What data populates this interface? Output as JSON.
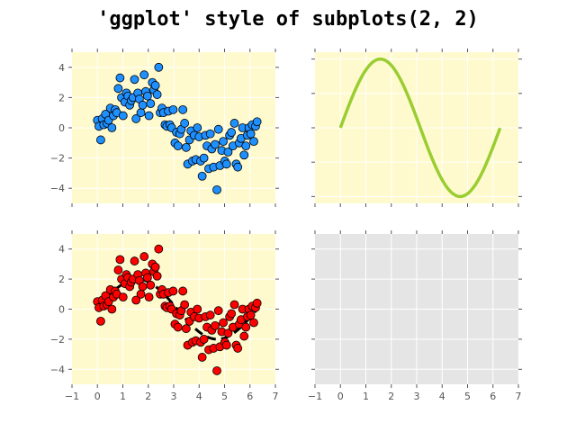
{
  "figure": {
    "suptitle": "'ggplot' style of subplots(2, 2)"
  },
  "chart_data": [
    {
      "type": "scatter",
      "panel": "top-left",
      "background": "#fffacd",
      "marker_color": "#1e90ff",
      "marker_edge": "#000000",
      "xlim": [
        -1,
        7
      ],
      "ylim": [
        -5,
        5
      ],
      "xticks": [
        -1,
        0,
        1,
        2,
        3,
        4,
        5,
        6,
        7
      ],
      "yticks": [
        -4,
        -2,
        0,
        2,
        4
      ],
      "show_xtick_labels": false,
      "show_ytick_labels": true,
      "grid": true,
      "x": [
        0.0,
        0.06,
        0.13,
        0.19,
        0.25,
        0.32,
        0.38,
        0.44,
        0.51,
        0.57,
        0.63,
        0.7,
        0.76,
        0.82,
        0.89,
        0.95,
        1.01,
        1.08,
        1.14,
        1.2,
        1.27,
        1.33,
        1.4,
        1.46,
        1.52,
        1.59,
        1.65,
        1.71,
        1.78,
        1.84,
        1.9,
        1.97,
        2.03,
        2.09,
        2.16,
        2.22,
        2.28,
        2.35,
        2.41,
        2.47,
        2.54,
        2.6,
        2.66,
        2.73,
        2.79,
        2.85,
        2.92,
        2.98,
        3.05,
        3.11,
        3.17,
        3.24,
        3.3,
        3.36,
        3.43,
        3.49,
        3.55,
        3.62,
        3.68,
        3.74,
        3.81,
        3.87,
        3.93,
        4.0,
        4.06,
        4.12,
        4.19,
        4.25,
        4.31,
        4.38,
        4.44,
        4.5,
        4.57,
        4.63,
        4.7,
        4.76,
        4.82,
        4.89,
        4.95,
        5.01,
        5.08,
        5.14,
        5.2,
        5.27,
        5.33,
        5.39,
        5.46,
        5.52,
        5.58,
        5.65,
        5.71,
        5.77,
        5.84,
        5.9,
        5.96,
        6.03,
        6.09,
        6.15,
        6.22,
        6.28
      ],
      "y": [
        0.5,
        0.1,
        -0.8,
        0.6,
        0.2,
        0.9,
        0.3,
        0.5,
        1.3,
        0.0,
        0.8,
        1.2,
        1.0,
        2.6,
        3.3,
        2.0,
        0.8,
        1.7,
        2.3,
        2.1,
        1.5,
        1.8,
        2.0,
        3.2,
        0.6,
        2.3,
        1.9,
        1.0,
        1.5,
        3.5,
        2.4,
        2.1,
        0.8,
        1.6,
        3.0,
        2.5,
        2.8,
        2.2,
        4.0,
        1.0,
        1.3,
        1.0,
        0.2,
        0.1,
        1.1,
        0.2,
        0.0,
        1.2,
        -1.0,
        -0.3,
        -1.2,
        -0.4,
        -0.1,
        1.2,
        0.3,
        -1.3,
        -2.4,
        -0.8,
        -0.2,
        -2.2,
        -0.5,
        -2.1,
        0.0,
        -0.6,
        -2.2,
        -3.2,
        -2.0,
        -0.5,
        -1.2,
        -2.7,
        -0.4,
        -1.4,
        -2.6,
        -1.1,
        -4.1,
        -0.1,
        -2.5,
        -1.5,
        -0.9,
        -2.2,
        -2.4,
        -1.6,
        -0.5,
        -0.3,
        -1.2,
        0.3,
        -2.4,
        -2.6,
        -1.0,
        -0.7,
        0.0,
        -1.8,
        -1.2,
        -0.5,
        0.0,
        -0.4,
        0.2,
        -0.9,
        0.1,
        0.4
      ]
    },
    {
      "type": "line",
      "panel": "top-right",
      "background": "#fffacd",
      "line_color": "#9acd32",
      "xlim": [
        -1,
        7
      ],
      "ylim": [
        -2.2,
        2.2
      ],
      "xticks": [
        -1,
        0,
        1,
        2,
        3,
        4,
        5,
        6,
        7
      ],
      "yticks": [
        -2,
        -1,
        0,
        1,
        2
      ],
      "show_xtick_labels": false,
      "show_ytick_labels": false,
      "grid": true,
      "function": "2*sin(x)",
      "x_range": [
        0,
        6.28
      ]
    },
    {
      "type": "scatter",
      "panel": "bottom-left",
      "background": "#fffacd",
      "marker_color": "#ff0000",
      "marker_edge": "#000000",
      "overlay_line": {
        "function": "2*sin(x)",
        "style": "dashed",
        "color": "#000000"
      },
      "xlim": [
        -1,
        7
      ],
      "ylim": [
        -5,
        5
      ],
      "xticks": [
        -1,
        0,
        1,
        2,
        3,
        4,
        5,
        6,
        7
      ],
      "yticks": [
        -4,
        -2,
        0,
        2,
        4
      ],
      "show_xtick_labels": true,
      "show_ytick_labels": true,
      "grid": true,
      "same_points_as": "top-left"
    },
    {
      "type": "empty",
      "panel": "bottom-right",
      "background": "#e5e5e5",
      "xlim": [
        -1,
        7
      ],
      "ylim": [
        -5,
        5
      ],
      "xticks": [
        -1,
        0,
        1,
        2,
        3,
        4,
        5,
        6,
        7
      ],
      "yticks": [
        -4,
        -2,
        0,
        2,
        4
      ],
      "show_xtick_labels": true,
      "show_ytick_labels": false,
      "grid": true
    }
  ]
}
